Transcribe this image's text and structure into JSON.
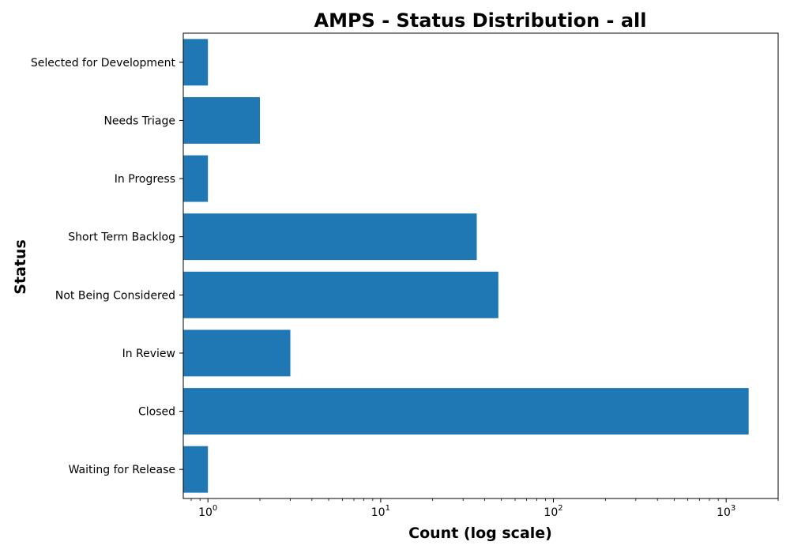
{
  "chart_data": {
    "type": "bar",
    "orientation": "horizontal",
    "title": "AMPS - Status Distribution - all",
    "xlabel": "Count (log scale)",
    "ylabel": "Status",
    "xscale": "log",
    "xlim": [
      0.72,
      2000
    ],
    "x_ticks": [
      {
        "value": 1,
        "base": "10",
        "exp": "0"
      },
      {
        "value": 10,
        "base": "10",
        "exp": "1"
      },
      {
        "value": 100,
        "base": "10",
        "exp": "2"
      },
      {
        "value": 1000,
        "base": "10",
        "exp": "3"
      }
    ],
    "categories": [
      "Selected for Development",
      "Needs Triage",
      "In Progress",
      "Short Term Backlog",
      "Not Being Considered",
      "In Review",
      "Closed",
      "Waiting for Release"
    ],
    "values": [
      1,
      2,
      1,
      36,
      48,
      3,
      1350,
      1
    ],
    "grid": false,
    "colors": {
      "bar": "#1f77b4",
      "axis": "#000000"
    }
  }
}
